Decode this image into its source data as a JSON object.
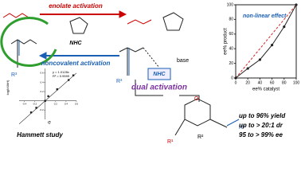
{
  "scheme": {
    "enolate_label": "enolate activation",
    "noncovalent_label": "noncovalent activation",
    "nhc_label": "NHC",
    "nhc_label_2": "NHC",
    "base_label": "base",
    "r3_top": "R³",
    "r3_mid": "R³",
    "dual_label": "dual activation"
  },
  "nle_plot": {
    "title": "non-linear effect",
    "y_label": "ee% product",
    "x_label": "ee% catalyst",
    "x": [
      0,
      20,
      40,
      60,
      80,
      100
    ],
    "y": [
      0,
      13,
      25,
      45,
      70,
      100
    ],
    "xlim": [
      0,
      100
    ],
    "ylim": [
      0,
      100
    ],
    "xticks": [
      0,
      20,
      40,
      60,
      80,
      100
    ],
    "yticks": [
      0,
      20,
      40,
      60,
      80,
      100
    ],
    "curve_color": "#222222",
    "ideal_color": "#d62728"
  },
  "hammett_plot": {
    "title": "Hammett study",
    "x_label": "σ",
    "y_label": "log(kX/kH)",
    "equation": "y = 1.0128x",
    "r2": "R² = 0.9599",
    "x": [
      -0.27,
      -0.17,
      0,
      0.06,
      0.23,
      0.45,
      0.54
    ],
    "y": [
      -0.25,
      -0.15,
      0,
      0.1,
      0.25,
      0.45,
      0.55
    ],
    "xlim": [
      -0.5,
      0.6
    ],
    "ylim": [
      -0.4,
      0.7
    ],
    "xticks": [
      -0.4,
      -0.2,
      0.2,
      0.4,
      0.6
    ],
    "yticks": [
      -0.2,
      0.2,
      0.4,
      0.6
    ]
  },
  "product": {
    "r1": "R¹",
    "r2": "R²",
    "r3": "R³",
    "oxygen": "O"
  },
  "results": [
    "up to 96% yield",
    "up to > 20:1 dr",
    "95 to > 99% ee"
  ]
}
